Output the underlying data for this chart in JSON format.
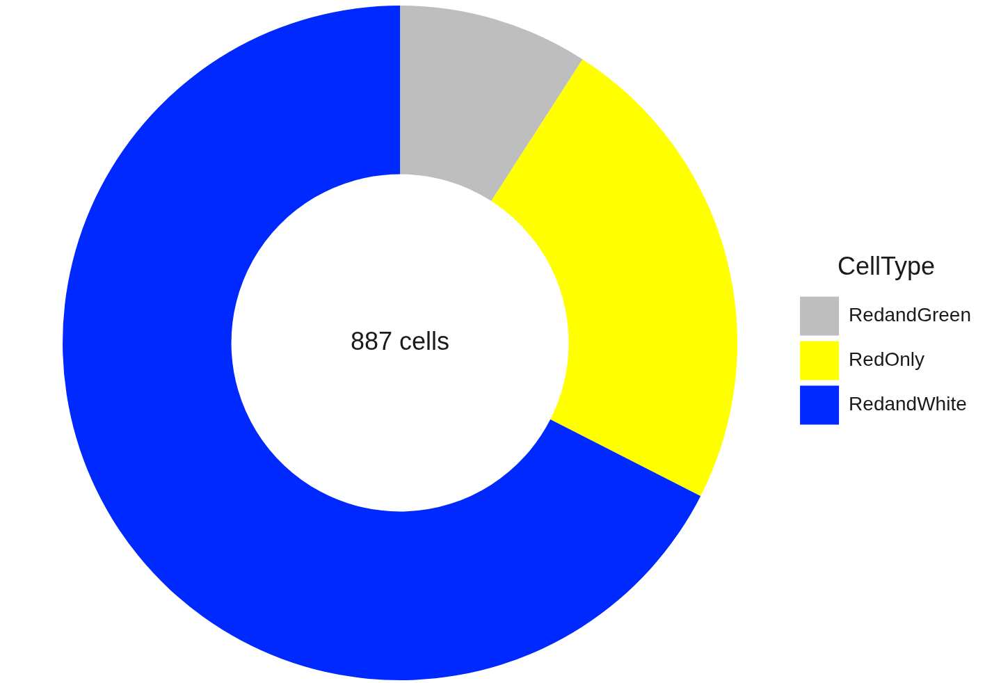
{
  "chart_data": {
    "type": "donut",
    "categories": [
      "RedandGreen",
      "RedOnly",
      "RedandWhite"
    ],
    "values": [
      9.1,
      23.4,
      67.5
    ],
    "colors": [
      "#bebebe",
      "#ffff00",
      "#0029ff"
    ],
    "legend_title": "CellType",
    "legend": "right",
    "annotations": [
      "887 cells"
    ]
  }
}
